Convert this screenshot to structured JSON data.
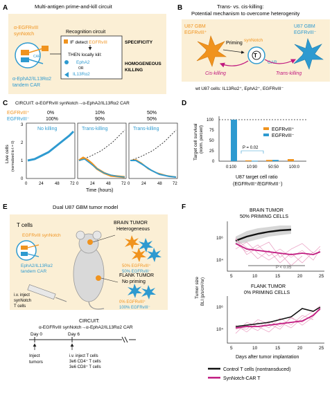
{
  "panels": {
    "A": {
      "letter": "A",
      "title": "Multi-antigen prime-and-kill circuit",
      "synnotch_label": [
        "α-EGFRvIII",
        "synNotch"
      ],
      "car_label": [
        "α-EphA2/IL13Rα2",
        "tandem CAR"
      ],
      "recognition_title": "Recognition circuit",
      "if_prefix": "IF detect ",
      "if_antigen": "EGFRvIII",
      "then_text": "THEN locally kill:",
      "kill_antigens": [
        "EphA2",
        "OR",
        "IL13Rα2"
      ],
      "specificity": "SPECIFICITY",
      "homogeneous": [
        "HOMOGENEOUS",
        "KILLING"
      ],
      "car_mini": "CAR"
    },
    "B": {
      "letter": "B",
      "title": [
        "Trans- vs. cis-killing:",
        "Potential mechanism to overcome heterogenity"
      ],
      "left_cell": [
        "U87 GBM",
        "EGFRvIII⁺"
      ],
      "right_cell": [
        "U87 GBM",
        "EGFRvIII⁻"
      ],
      "priming": "Priming",
      "synnotch": "synNotch",
      "tcell": "T",
      "car": "CAR",
      "cis": "Cis-killing",
      "trans": "Trans-killing",
      "footer": "wt U87 cells: IL13Rα2⁺, EphA2⁺, EGFRvIII⁻"
    },
    "C": {
      "letter": "C",
      "circuit": "CIRCUIT:  α-EGFRvIII synNotch→α-EphA2/IL13Rα2 CAR",
      "row_plus": "EGFRvIII⁺",
      "row_minus": "EGFRvIII⁻",
      "ratios": [
        [
          "0%",
          "100%"
        ],
        [
          "10%",
          "90%"
        ],
        [
          "50%",
          "50%"
        ]
      ],
      "panel_labels": [
        "No killing",
        "Trans-killing",
        "Trans-killing"
      ],
      "ylabel": [
        "Live cells",
        "(normalized to t = 0)"
      ],
      "xlabel": "Time (hours)",
      "yticks": [
        "3",
        "2",
        "1",
        "0"
      ],
      "xticks": [
        "0",
        "24",
        "48",
        "72"
      ]
    },
    "D": {
      "letter": "D",
      "ylabel": [
        "Target cell survival",
        "(norm. percent)"
      ],
      "yticks": [
        "100",
        "75",
        "50",
        "25",
        "0"
      ],
      "legend": [
        "EGFRvIII⁺",
        "EGFRvIII⁻"
      ],
      "pvalue": "P = 0.02",
      "xlabel": [
        "U87 target cell ratio",
        "(EGFRvIII⁺/EGFRvIII⁻)"
      ],
      "categories": [
        "0:100",
        "10:90",
        "50:50",
        "100:0"
      ]
    },
    "E": {
      "letter": "E",
      "title": "Dual U87 GBM tumor model",
      "tcells": "T cells",
      "synnotch": "EGFRvIII synNotch",
      "car": [
        "EphA2/IL13Rα2",
        "tandem CAR"
      ],
      "brain": [
        "BRAIN TUMOR",
        "Heterogeneous"
      ],
      "brain_pct": [
        "50% EGFRvIII⁺",
        "50% EGFRvIII⁻"
      ],
      "flank": [
        "FLANK TUMOR",
        "No priming"
      ],
      "flank_pct": [
        "0% EGFRvIII⁺",
        "100% EGFRvIII⁻"
      ],
      "inject": [
        "i.v. inject",
        "synNotch",
        "T cells"
      ],
      "circuit_title": "CIRCUIT:",
      "circuit": "α-EGFRvIII synNotch→α-EphA2/IL13Rα2 CAR",
      "day0": "Day 0",
      "day6": "Day 6",
      "inject_tumors": [
        "Inject",
        "tumors"
      ],
      "inject_t": [
        "i.v. inject T cells",
        "3e6 CD4⁺ T cells",
        "3e6 CD8⁺ T cells"
      ]
    },
    "F": {
      "letter": "F",
      "brain_title": [
        "BRAIN TUMOR",
        "50% PRIMING CELLS"
      ],
      "flank_title": [
        "FLANK TUMOR",
        "0% PRIMING CELLS"
      ],
      "ylabel": [
        "Tumor size",
        "BLI (p/s/cm²/sr)"
      ],
      "yticks": [
        "10⁶",
        "10⁴"
      ],
      "xticks": [
        "5",
        "10",
        "15",
        "20",
        "25"
      ],
      "pvalue": "P < 0.05",
      "xlabel": "Days after tumor implantation",
      "legend": [
        "Control T cells (nontransduced)",
        "SynNotch-CAR T"
      ]
    }
  },
  "colors": {
    "orange": "#F0931E",
    "blue": "#2E9AD0",
    "magenta": "#C0187F",
    "beige": "#FBEFD5",
    "grey": "#888888"
  }
}
